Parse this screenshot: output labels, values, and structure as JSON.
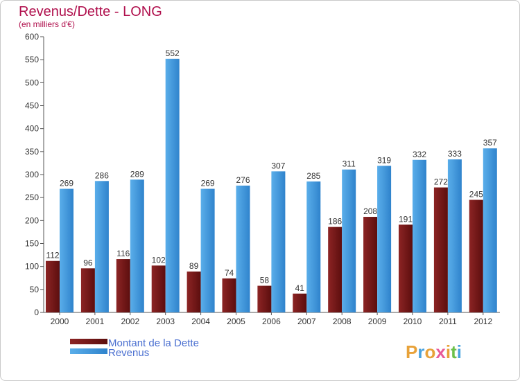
{
  "chart_data": {
    "type": "bar",
    "title": "Revenus/Dette - LONG",
    "subtitle": "(en milliers d'€)",
    "categories": [
      "2000",
      "2001",
      "2002",
      "2003",
      "2004",
      "2005",
      "2006",
      "2007",
      "2008",
      "2009",
      "2010",
      "2011",
      "2012"
    ],
    "series": [
      {
        "name": "Montant de la Dette",
        "color": "#7a1a1a",
        "values": [
          112,
          96,
          116,
          102,
          89,
          74,
          58,
          41,
          186,
          208,
          191,
          272,
          245
        ]
      },
      {
        "name": "Revenus",
        "color": "#3a8fd6",
        "values": [
          269,
          286,
          289,
          552,
          269,
          276,
          307,
          285,
          311,
          319,
          332,
          333,
          357
        ]
      }
    ],
    "ylim": [
      0,
      600
    ],
    "yticks": [
      0,
      50,
      100,
      150,
      200,
      250,
      300,
      350,
      400,
      450,
      500,
      550,
      600
    ],
    "grid": false,
    "legend": "bottom-left"
  },
  "branding": {
    "logo": "Proxiti",
    "logo_colors": [
      "#e8a23a",
      "#4aa3df",
      "#e8a23a",
      "#e85a9a",
      "#e8a23a",
      "#6cc04a",
      "#4aa3df"
    ]
  }
}
